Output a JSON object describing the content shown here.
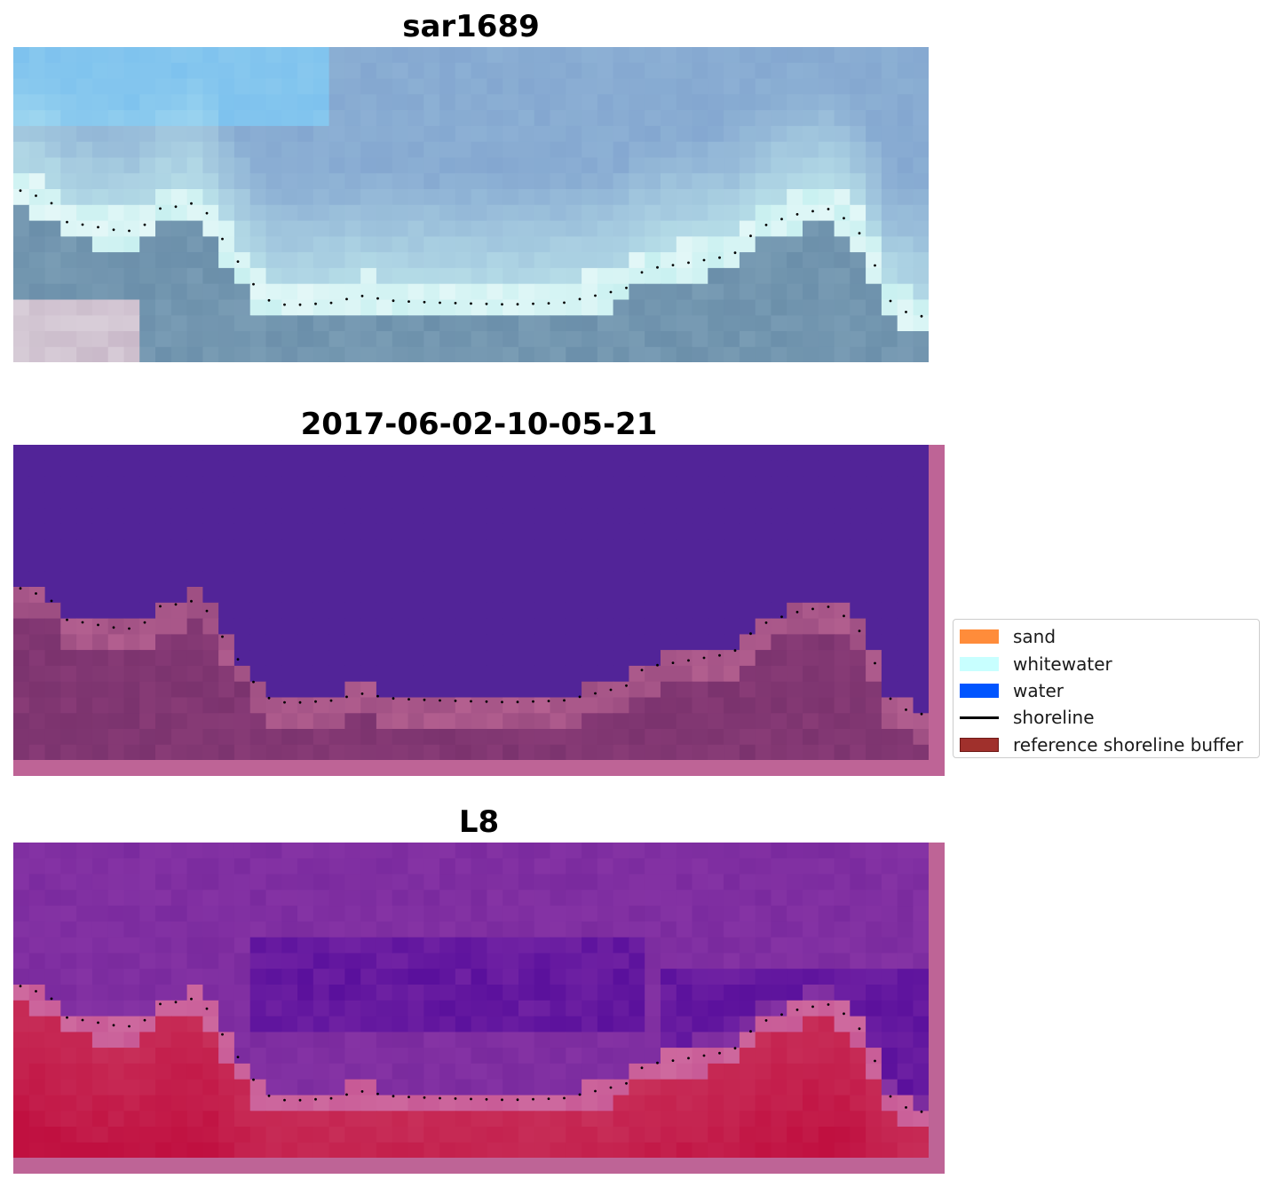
{
  "panels": [
    {
      "title": "sar1689",
      "kind": "rgb"
    },
    {
      "title": "2017-06-02-10-05-21",
      "kind": "classification"
    },
    {
      "title": "L8",
      "kind": "mndwi"
    }
  ],
  "legend": {
    "items": [
      {
        "label": "sand",
        "color": "#ff8c3a",
        "type": "patch"
      },
      {
        "label": "whitewater",
        "color": "#c8ffff",
        "type": "patch"
      },
      {
        "label": "water",
        "color": "#0055ff",
        "type": "patch"
      },
      {
        "label": "shoreline",
        "color": "#000000",
        "type": "line"
      },
      {
        "label": "reference shoreline buffer",
        "color": "#a0302c",
        "type": "patch-edge"
      }
    ]
  },
  "colors": {
    "rgb_sea": "#84a7d0",
    "rgb_sea_light": "#7ec2ee",
    "rgb_surf": "#c8f0f0",
    "rgb_land": "#6b8faa",
    "class_water": "#522498",
    "class_land": "#7b336e",
    "class_land_edge": "#b46090",
    "buffer_frame": "#be6496",
    "mndwi_water": "#7a2a9e",
    "mndwi_deep": "#5a109c",
    "mndwi_land": "#c9355e",
    "mndwi_land_strong": "#c01040"
  }
}
